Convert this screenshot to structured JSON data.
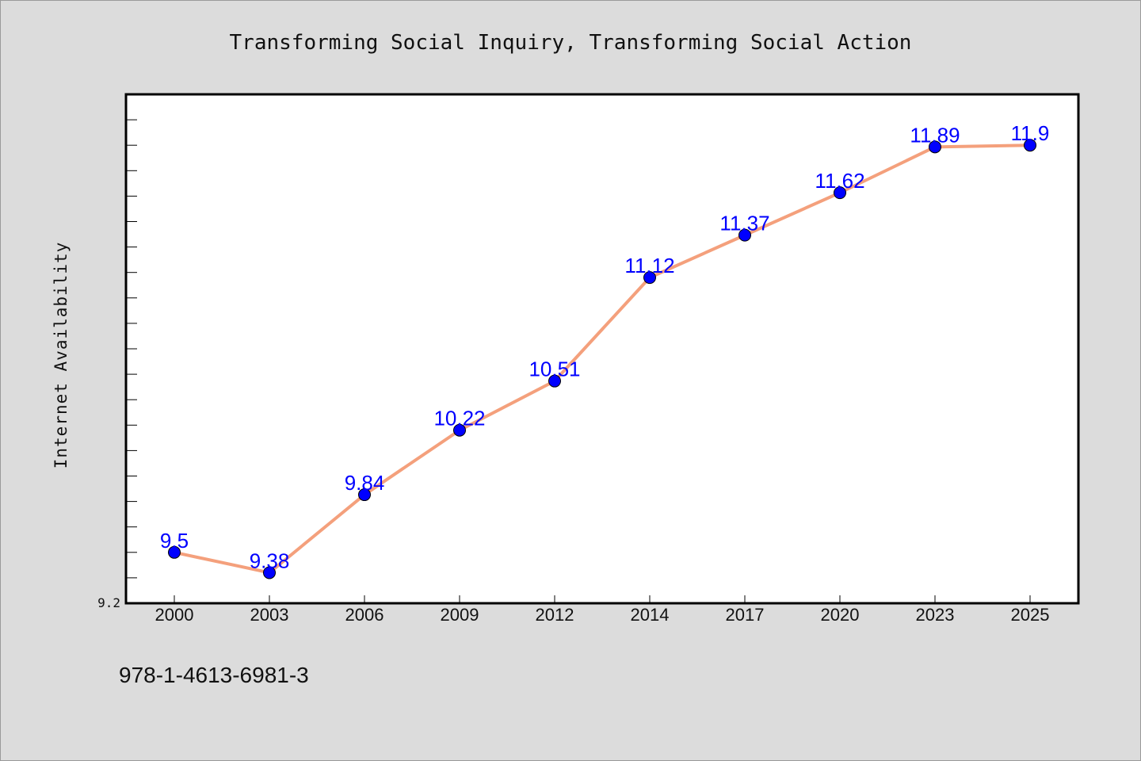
{
  "footer": {
    "isbn": "978-1-4613-6981-3"
  },
  "colors": {
    "background": "#dcdcdc",
    "plot_bg": "#ffffff",
    "line": "#f4a07c",
    "marker": "#0000ff",
    "label": "#0000ff"
  },
  "chart_data": {
    "type": "line",
    "title": "Transforming Social Inquiry, Transforming Social Action",
    "xlabel": "",
    "ylabel": "Internet Availability",
    "categories": [
      "2000",
      "2003",
      "2006",
      "2009",
      "2012",
      "2014",
      "2017",
      "2020",
      "2023",
      "2025"
    ],
    "values": [
      9.5,
      9.38,
      9.84,
      10.22,
      10.51,
      11.12,
      11.37,
      11.62,
      11.89,
      11.9
    ],
    "value_labels": [
      "9.5",
      "9.38",
      "9.84",
      "10.22",
      "10.51",
      "11.12",
      "11.37",
      "11.62",
      "11.89",
      "11.9"
    ],
    "ylim": [
      9.2,
      12.2
    ],
    "yticks_labeled": [
      "9.2"
    ],
    "grid": false,
    "legend": false
  }
}
